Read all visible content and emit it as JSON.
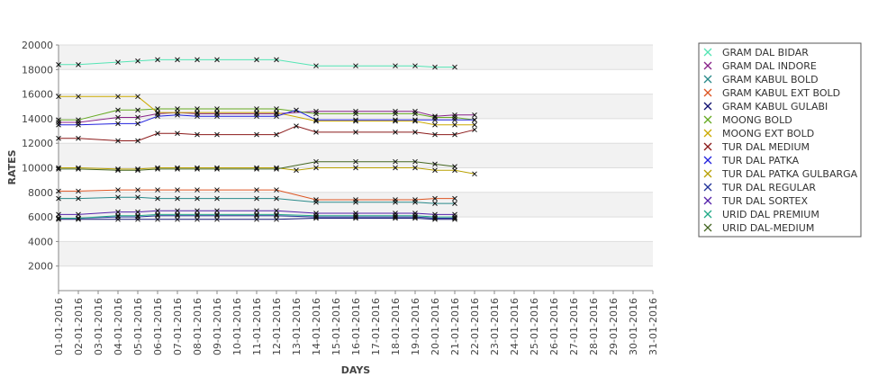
{
  "chart_data": {
    "type": "line",
    "title": "",
    "xlabel": "DAYS",
    "ylabel": "RATES",
    "ylim": [
      0,
      20000
    ],
    "yticks": [
      2000,
      4000,
      6000,
      8000,
      10000,
      12000,
      14000,
      16000,
      18000,
      20000
    ],
    "grid": "alternating horizontal bands",
    "legend_position": "right",
    "categories": [
      "01-01-2016",
      "02-01-2016",
      "03-01-2016",
      "04-01-2016",
      "05-01-2016",
      "06-01-2016",
      "07-01-2016",
      "08-01-2016",
      "09-01-2016",
      "10-01-2016",
      "11-01-2016",
      "12-01-2016",
      "13-01-2016",
      "14-01-2016",
      "15-01-2016",
      "16-01-2016",
      "17-01-2016",
      "18-01-2016",
      "19-01-2016",
      "20-01-2016",
      "21-01-2016",
      "22-01-2016",
      "23-01-2016",
      "24-01-2016",
      "25-01-2016",
      "26-01-2016",
      "27-01-2016",
      "28-01-2016",
      "29-01-2016",
      "30-01-2016",
      "31-01-2016"
    ],
    "series": [
      {
        "name": "GRAM DAL BIDAR",
        "color": "#55e5b5",
        "values": [
          18400,
          18400,
          null,
          18600,
          18700,
          18800,
          18800,
          18800,
          18800,
          null,
          18800,
          18800,
          null,
          18300,
          null,
          18300,
          null,
          18300,
          18300,
          18200,
          18200,
          null,
          null,
          null,
          null,
          null,
          null,
          null,
          null,
          null,
          null
        ]
      },
      {
        "name": "GRAM DAL INDORE",
        "color": "#882288",
        "values": [
          13700,
          13700,
          null,
          14100,
          14100,
          14400,
          14500,
          14400,
          14400,
          null,
          14400,
          14400,
          null,
          14600,
          null,
          14600,
          null,
          14600,
          14600,
          14200,
          14300,
          14300,
          null,
          null,
          null,
          null,
          null,
          null,
          null,
          null,
          null
        ]
      },
      {
        "name": "GRAM KABUL BOLD",
        "color": "#2a8a8a",
        "values": [
          7500,
          7500,
          null,
          7600,
          7600,
          7500,
          7500,
          7500,
          7500,
          null,
          7500,
          7500,
          null,
          7200,
          null,
          7200,
          null,
          7200,
          7200,
          7100,
          7100,
          null,
          null,
          null,
          null,
          null,
          null,
          null,
          null,
          null,
          null
        ]
      },
      {
        "name": "GRAM KABUL EXT BOLD",
        "color": "#dd5522",
        "values": [
          8100,
          8100,
          null,
          8200,
          8200,
          8200,
          8200,
          8200,
          8200,
          null,
          8200,
          8200,
          null,
          7400,
          null,
          7400,
          null,
          7400,
          7400,
          7500,
          7500,
          null,
          null,
          null,
          null,
          null,
          null,
          null,
          null,
          null,
          null
        ]
      },
      {
        "name": "GRAM KABUL GULABI",
        "color": "#101070",
        "values": [
          5800,
          5800,
          null,
          5800,
          5800,
          5800,
          5800,
          5800,
          5800,
          null,
          5800,
          5800,
          null,
          5900,
          null,
          5900,
          null,
          5900,
          5900,
          5800,
          5800,
          null,
          null,
          null,
          null,
          null,
          null,
          null,
          null,
          null,
          null
        ]
      },
      {
        "name": "MOONG BOLD",
        "color": "#66aa22",
        "values": [
          13900,
          13900,
          null,
          14700,
          14700,
          14800,
          14800,
          14800,
          14800,
          null,
          14800,
          14800,
          null,
          14400,
          null,
          14400,
          null,
          14400,
          14400,
          14100,
          14100,
          13900,
          null,
          null,
          null,
          null,
          null,
          null,
          null,
          null,
          null
        ]
      },
      {
        "name": "MOONG EXT BOLD",
        "color": "#ccaa00",
        "values": [
          15800,
          15800,
          null,
          15800,
          15800,
          14500,
          14500,
          14500,
          14500,
          null,
          14500,
          14500,
          null,
          13800,
          null,
          13800,
          null,
          13800,
          13800,
          13500,
          13500,
          13500,
          null,
          null,
          null,
          null,
          null,
          null,
          null,
          null,
          null
        ]
      },
      {
        "name": "TUR DAL MEDIUM",
        "color": "#8b1a1a",
        "values": [
          12400,
          12400,
          null,
          12200,
          12200,
          12800,
          12800,
          12700,
          12700,
          null,
          12700,
          12700,
          13400,
          12900,
          null,
          12900,
          null,
          12900,
          12900,
          12700,
          12700,
          13100,
          null,
          null,
          null,
          null,
          null,
          null,
          null,
          null,
          null
        ]
      },
      {
        "name": "TUR DAL PATKA",
        "color": "#2222dd",
        "values": [
          13500,
          13500,
          null,
          13600,
          13600,
          14200,
          14300,
          14200,
          14200,
          null,
          14200,
          14200,
          14700,
          13900,
          null,
          13900,
          null,
          13900,
          13900,
          13900,
          13900,
          13900,
          null,
          null,
          null,
          null,
          null,
          null,
          null,
          null,
          null
        ]
      },
      {
        "name": "TUR DAL PATKA GULBARGA",
        "color": "#b8a000",
        "values": [
          10000,
          10000,
          null,
          9900,
          9900,
          10000,
          10000,
          10000,
          10000,
          null,
          10000,
          10000,
          9800,
          10000,
          null,
          10000,
          null,
          10000,
          10000,
          9800,
          9800,
          9500,
          null,
          null,
          null,
          null,
          null,
          null,
          null,
          null,
          null
        ]
      },
      {
        "name": "TUR DAL REGULAR",
        "color": "#223399",
        "values": [
          5900,
          5900,
          null,
          6000,
          6000,
          6100,
          6100,
          6100,
          6100,
          null,
          6100,
          6100,
          null,
          6000,
          null,
          6000,
          null,
          6000,
          6000,
          5900,
          5900,
          null,
          null,
          null,
          null,
          null,
          null,
          null,
          null,
          null,
          null
        ]
      },
      {
        "name": "TUR DAL SORTEX",
        "color": "#5522aa",
        "values": [
          6200,
          6200,
          null,
          6400,
          6400,
          6500,
          6500,
          6500,
          6500,
          null,
          6500,
          6500,
          null,
          6300,
          null,
          6300,
          null,
          6300,
          6300,
          6200,
          6200,
          null,
          null,
          null,
          null,
          null,
          null,
          null,
          null,
          null,
          null
        ]
      },
      {
        "name": "URID DAL PREMIUM",
        "color": "#22aa88",
        "values": [
          5900,
          5900,
          null,
          6100,
          6100,
          6200,
          6200,
          6200,
          6200,
          null,
          6200,
          6200,
          null,
          6100,
          null,
          6100,
          null,
          6100,
          6100,
          6000,
          6000,
          null,
          null,
          null,
          null,
          null,
          null,
          null,
          null,
          null,
          null
        ]
      },
      {
        "name": "URID DAL-MEDIUM",
        "color": "#446622",
        "values": [
          9900,
          9900,
          null,
          9800,
          9800,
          9900,
          9900,
          9900,
          9900,
          null,
          9900,
          9900,
          null,
          10500,
          null,
          10500,
          null,
          10500,
          10500,
          10300,
          10100,
          null,
          null,
          null,
          null,
          null,
          null,
          null,
          null,
          null,
          null
        ]
      }
    ]
  }
}
